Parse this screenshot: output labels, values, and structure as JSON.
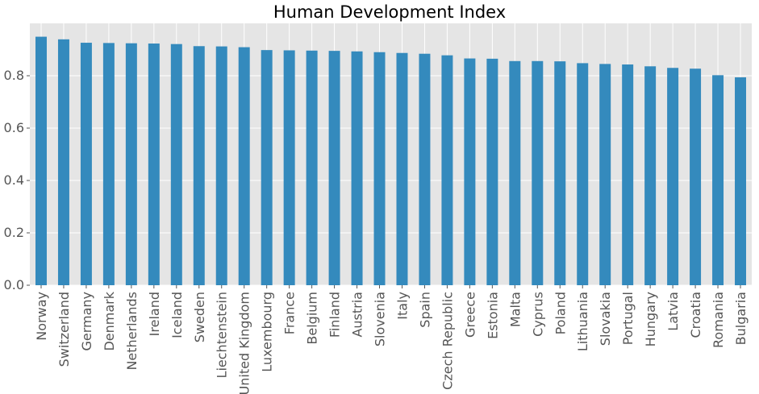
{
  "chart_data": {
    "type": "bar",
    "title": "Human Development Index",
    "xlabel": "",
    "ylabel": "",
    "ylim": [
      0,
      1.0
    ],
    "yticks": [
      0.0,
      0.2,
      0.4,
      0.6,
      0.8
    ],
    "ytick_labels": [
      "0.0",
      "0.2",
      "0.4",
      "0.6",
      "0.8"
    ],
    "grid": true,
    "bar_color": "#348ABD",
    "background_color": "#E5E5E5",
    "categories": [
      "Norway",
      "Switzerland",
      "Germany",
      "Denmark",
      "Netherlands",
      "Ireland",
      "Iceland",
      "Sweden",
      "Liechtenstein",
      "United Kingdom",
      "Luxembourg",
      "France",
      "Belgium",
      "Finland",
      "Austria",
      "Slovenia",
      "Italy",
      "Spain",
      "Czech Republic",
      "Greece",
      "Estonia",
      "Malta",
      "Cyprus",
      "Poland",
      "Lithuania",
      "Slovakia",
      "Portugal",
      "Hungary",
      "Latvia",
      "Croatia",
      "Romania",
      "Bulgaria"
    ],
    "values": [
      0.949,
      0.939,
      0.926,
      0.925,
      0.924,
      0.923,
      0.921,
      0.913,
      0.912,
      0.909,
      0.898,
      0.897,
      0.896,
      0.895,
      0.893,
      0.89,
      0.887,
      0.884,
      0.878,
      0.866,
      0.865,
      0.856,
      0.856,
      0.855,
      0.848,
      0.845,
      0.843,
      0.836,
      0.83,
      0.827,
      0.802,
      0.794
    ]
  }
}
